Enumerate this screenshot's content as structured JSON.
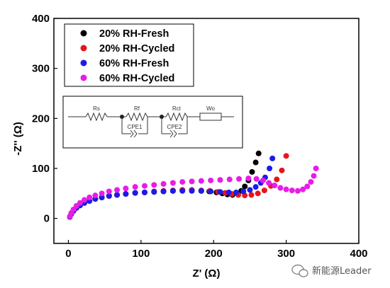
{
  "chart_data": {
    "type": "scatter",
    "xlabel": "Z' (Ω)",
    "ylabel": "-Z'' (Ω)",
    "xlim": [
      -20,
      400
    ],
    "ylim": [
      -50,
      400
    ],
    "xticks": [
      "0",
      "100",
      "200",
      "300",
      "400"
    ],
    "yticks": [
      "0",
      "100",
      "200",
      "300",
      "400"
    ],
    "legend_position": "top-left",
    "series": [
      {
        "name": "20% RH-Fresh",
        "color": "#000000",
        "points": [
          [
            2,
            3
          ],
          [
            4,
            9
          ],
          [
            7,
            15
          ],
          [
            11,
            21
          ],
          [
            16,
            26
          ],
          [
            22,
            31
          ],
          [
            29,
            35
          ],
          [
            37,
            39
          ],
          [
            46,
            42
          ],
          [
            56,
            45
          ],
          [
            67,
            47
          ],
          [
            79,
            49
          ],
          [
            92,
            51
          ],
          [
            105,
            52
          ],
          [
            118,
            53
          ],
          [
            131,
            54
          ],
          [
            144,
            55
          ],
          [
            157,
            56
          ],
          [
            170,
            56
          ],
          [
            183,
            55
          ],
          [
            194,
            54
          ],
          [
            204,
            52
          ],
          [
            212,
            50
          ],
          [
            219,
            48
          ],
          [
            226,
            47
          ],
          [
            233,
            49
          ],
          [
            238,
            55
          ],
          [
            243,
            64
          ],
          [
            248,
            76
          ],
          [
            253,
            93
          ],
          [
            258,
            112
          ],
          [
            262,
            130
          ]
        ]
      },
      {
        "name": "20% RH-Cycled",
        "color": "#e8141c",
        "points": [
          [
            2,
            3
          ],
          [
            4,
            9
          ],
          [
            7,
            15
          ],
          [
            11,
            21
          ],
          [
            16,
            26
          ],
          [
            22,
            31
          ],
          [
            29,
            35
          ],
          [
            37,
            39
          ],
          [
            46,
            42
          ],
          [
            56,
            45
          ],
          [
            67,
            47
          ],
          [
            79,
            49
          ],
          [
            92,
            51
          ],
          [
            105,
            52
          ],
          [
            118,
            54
          ],
          [
            131,
            55
          ],
          [
            144,
            56
          ],
          [
            157,
            57
          ],
          [
            170,
            57
          ],
          [
            183,
            56
          ],
          [
            195,
            55
          ],
          [
            206,
            53
          ],
          [
            216,
            51
          ],
          [
            225,
            49
          ],
          [
            234,
            47
          ],
          [
            243,
            46
          ],
          [
            252,
            47
          ],
          [
            261,
            50
          ],
          [
            270,
            56
          ],
          [
            279,
            65
          ],
          [
            287,
            78
          ],
          [
            294,
            96
          ],
          [
            300,
            125
          ]
        ]
      },
      {
        "name": "60% RH-Fresh",
        "color": "#1c1ce8",
        "points": [
          [
            2,
            3
          ],
          [
            4,
            9
          ],
          [
            7,
            15
          ],
          [
            11,
            21
          ],
          [
            16,
            26
          ],
          [
            22,
            31
          ],
          [
            29,
            35
          ],
          [
            37,
            39
          ],
          [
            46,
            42
          ],
          [
            56,
            45
          ],
          [
            67,
            47
          ],
          [
            79,
            49
          ],
          [
            92,
            51
          ],
          [
            105,
            52
          ],
          [
            118,
            53
          ],
          [
            131,
            54
          ],
          [
            144,
            55
          ],
          [
            157,
            55
          ],
          [
            170,
            55
          ],
          [
            183,
            55
          ],
          [
            196,
            54
          ],
          [
            209,
            53
          ],
          [
            221,
            52
          ],
          [
            231,
            52
          ],
          [
            241,
            54
          ],
          [
            250,
            57
          ],
          [
            258,
            63
          ],
          [
            265,
            71
          ],
          [
            271,
            82
          ],
          [
            277,
            100
          ],
          [
            281,
            120
          ]
        ]
      },
      {
        "name": "60% RH-Cycled",
        "color": "#e81ce8",
        "points": [
          [
            2,
            4
          ],
          [
            4,
            11
          ],
          [
            7,
            18
          ],
          [
            11,
            25
          ],
          [
            16,
            31
          ],
          [
            22,
            37
          ],
          [
            29,
            42
          ],
          [
            37,
            46
          ],
          [
            46,
            50
          ],
          [
            56,
            54
          ],
          [
            67,
            57
          ],
          [
            79,
            60
          ],
          [
            92,
            63
          ],
          [
            105,
            65
          ],
          [
            118,
            67
          ],
          [
            131,
            69
          ],
          [
            144,
            71
          ],
          [
            157,
            73
          ],
          [
            170,
            74
          ],
          [
            183,
            75
          ],
          [
            196,
            76
          ],
          [
            209,
            77
          ],
          [
            222,
            78
          ],
          [
            235,
            79
          ],
          [
            248,
            80
          ],
          [
            259,
            79
          ],
          [
            268,
            76
          ],
          [
            276,
            71
          ],
          [
            284,
            66
          ],
          [
            292,
            61
          ],
          [
            300,
            58
          ],
          [
            308,
            56
          ],
          [
            316,
            55
          ],
          [
            323,
            58
          ],
          [
            329,
            64
          ],
          [
            334,
            73
          ],
          [
            338,
            85
          ],
          [
            341,
            100
          ]
        ]
      }
    ]
  },
  "circuit": {
    "labels": [
      "Rs",
      "Rf",
      "Rct",
      "Wo"
    ],
    "cpe_labels": [
      "CPE1",
      "CPE2"
    ]
  },
  "watermark": {
    "text": "新能源Leader"
  }
}
